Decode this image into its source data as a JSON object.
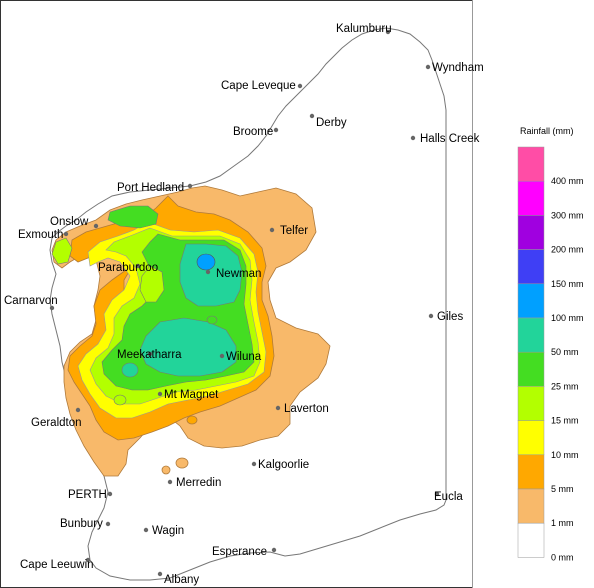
{
  "legend": {
    "title": "Rainfall (mm)",
    "bands": [
      {
        "label": "400 mm",
        "color": "#ff4da6"
      },
      {
        "label": "300 mm",
        "color": "#ff00ff"
      },
      {
        "label": "200 mm",
        "color": "#a000e0"
      },
      {
        "label": "150 mm",
        "color": "#3f3ff5"
      },
      {
        "label": "100 mm",
        "color": "#00a0ff"
      },
      {
        "label": "50 mm",
        "color": "#22d49a"
      },
      {
        "label": "25 mm",
        "color": "#44dd22"
      },
      {
        "label": "15 mm",
        "color": "#b3ff00"
      },
      {
        "label": "10 mm",
        "color": "#ffff00"
      },
      {
        "label": "5 mm",
        "color": "#ffa800"
      },
      {
        "label": "1 mm",
        "color": "#f8b96a"
      },
      {
        "label": "0 mm",
        "color": "#ffffff"
      }
    ]
  },
  "places": [
    {
      "id": "kalumburu",
      "name": "Kalumburu"
    },
    {
      "id": "wyndham",
      "name": "Wyndham"
    },
    {
      "id": "cape-leveque",
      "name": "Cape Leveque"
    },
    {
      "id": "derby",
      "name": "Derby"
    },
    {
      "id": "broome",
      "name": "Broome"
    },
    {
      "id": "halls-creek",
      "name": "Halls Creek"
    },
    {
      "id": "port-hedland",
      "name": "Port Hedland"
    },
    {
      "id": "onslow",
      "name": "Onslow"
    },
    {
      "id": "exmouth",
      "name": "Exmouth"
    },
    {
      "id": "telfer",
      "name": "Telfer"
    },
    {
      "id": "paraburdoo",
      "name": "Paraburdoo"
    },
    {
      "id": "newman",
      "name": "Newman"
    },
    {
      "id": "carnarvon",
      "name": "Carnarvon"
    },
    {
      "id": "giles",
      "name": "Giles"
    },
    {
      "id": "meekatharra",
      "name": "Meekatharra"
    },
    {
      "id": "wiluna",
      "name": "Wiluna"
    },
    {
      "id": "mt-magnet",
      "name": "Mt Magnet"
    },
    {
      "id": "laverton",
      "name": "Laverton"
    },
    {
      "id": "geraldton",
      "name": "Geraldton"
    },
    {
      "id": "kalgoorlie",
      "name": "Kalgoorlie"
    },
    {
      "id": "merredin",
      "name": "Merredin"
    },
    {
      "id": "perth",
      "name": "PERTH"
    },
    {
      "id": "eucla",
      "name": "Eucla"
    },
    {
      "id": "bunbury",
      "name": "Bunbury"
    },
    {
      "id": "wagin",
      "name": "Wagin"
    },
    {
      "id": "esperance",
      "name": "Esperance"
    },
    {
      "id": "cape-leeuwin",
      "name": "Cape Leeuwin"
    },
    {
      "id": "albany",
      "name": "Albany"
    }
  ]
}
